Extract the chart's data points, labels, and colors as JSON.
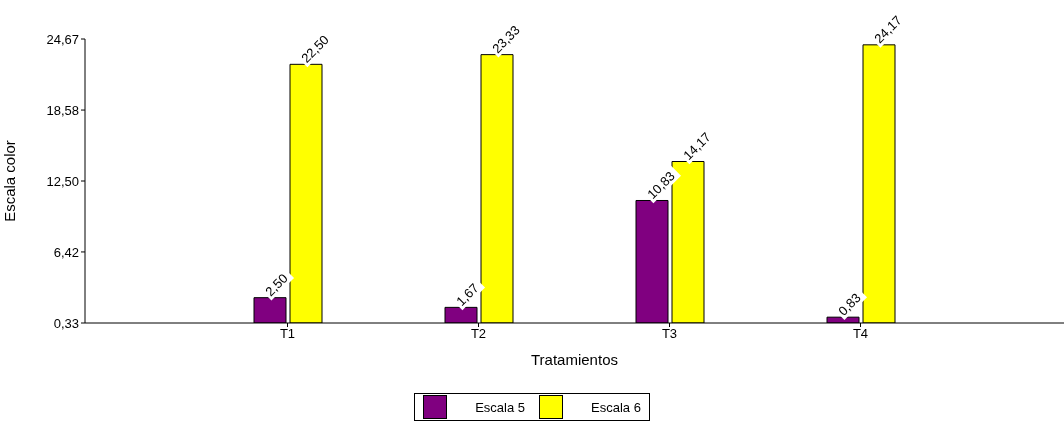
{
  "chart_data": {
    "type": "bar",
    "xlabel": "Tratamientos",
    "ylabel": "Escala color",
    "categories": [
      "T1",
      "T2",
      "T3",
      "T4"
    ],
    "series": [
      {
        "name": "Escala 5",
        "color": "#800080",
        "values": [
          2.5,
          1.67,
          10.83,
          0.83
        ],
        "value_labels": [
          "2,50",
          "1,67",
          "10,83",
          "0,83"
        ]
      },
      {
        "name": "Escala 6",
        "color": "#ffff00",
        "values": [
          22.5,
          23.33,
          14.17,
          24.17
        ],
        "value_labels": [
          "22,50",
          "23,33",
          "14,17",
          "24,17"
        ]
      }
    ],
    "ylim": [
      0.33,
      24.67
    ],
    "yticks": [
      {
        "value": 0.33,
        "label": "0,33"
      },
      {
        "value": 6.42,
        "label": "6,42"
      },
      {
        "value": 12.5,
        "label": "12,50"
      },
      {
        "value": 18.58,
        "label": "18,58"
      },
      {
        "value": 24.67,
        "label": "24,67"
      }
    ],
    "grid": false,
    "legend": "bottom"
  }
}
